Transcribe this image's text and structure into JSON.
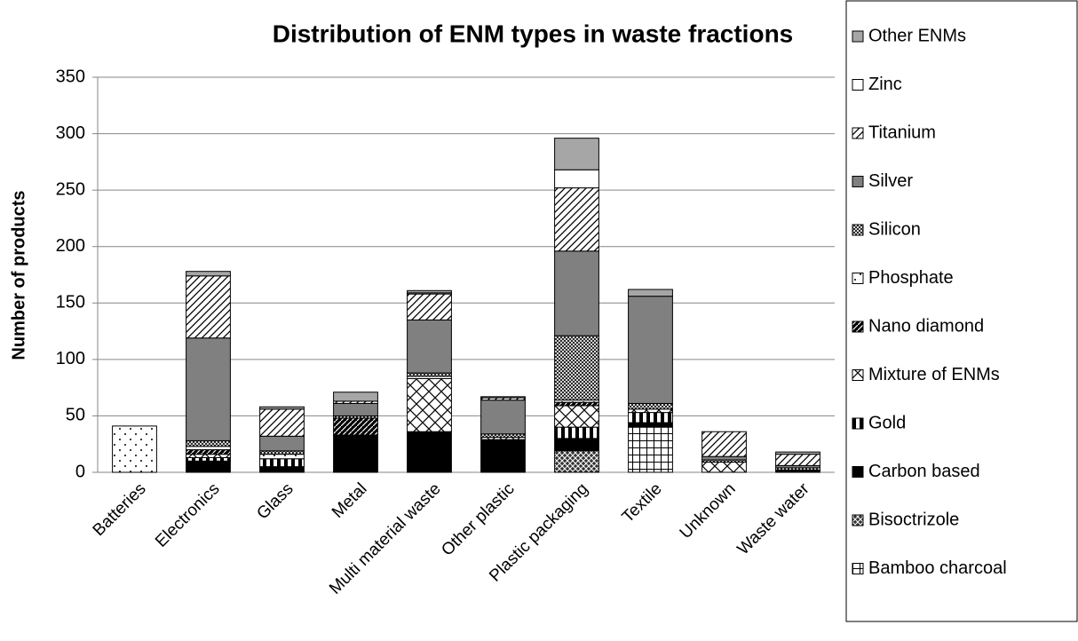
{
  "chart_data": {
    "type": "stacked_bar",
    "title": "Distribution of ENM types in waste fractions",
    "y_label": "Number of products",
    "categories": [
      "Batteries",
      "Electronics",
      "Glass",
      "Metal",
      "Multi material waste",
      "Other plastic",
      "Plastic packaging",
      "Textile",
      "Unknown",
      "Waste water"
    ],
    "ylim": [
      0,
      350
    ],
    "yticks": [
      0,
      50,
      100,
      150,
      200,
      250,
      300,
      350
    ],
    "grid": true,
    "legend": "right",
    "series": [
      {
        "name": "Bamboo charcoal",
        "color": "#000000",
        "pattern": "grid",
        "values": [
          0,
          0,
          0,
          0,
          0,
          0,
          0,
          40,
          0,
          0
        ]
      },
      {
        "name": "Bisoctrizole",
        "color": "#000000",
        "pattern": "crossdiag",
        "values": [
          0,
          0,
          0,
          0,
          0,
          0,
          19,
          0,
          0,
          0
        ]
      },
      {
        "name": "Carbon based",
        "color": "#000000",
        "pattern": "solid",
        "values": [
          0,
          10,
          5,
          33,
          36,
          29,
          11,
          4,
          0,
          2
        ]
      },
      {
        "name": "Gold",
        "color": "#000000",
        "pattern": "vertical",
        "values": [
          0,
          3,
          7,
          0,
          0,
          0,
          10,
          9,
          0,
          0
        ]
      },
      {
        "name": "Mixture of ENMs",
        "color": "#000000",
        "pattern": "diamond",
        "values": [
          0,
          3,
          0,
          0,
          47,
          2,
          19,
          3,
          9,
          0
        ]
      },
      {
        "name": "Nano diamond",
        "color": "#000000",
        "pattern": "darkdiag",
        "values": [
          0,
          4,
          0,
          15,
          0,
          0,
          3,
          0,
          0,
          0
        ]
      },
      {
        "name": "Phosphate",
        "color": "#000000",
        "pattern": "dots",
        "values": [
          41,
          3,
          4,
          0,
          2,
          0,
          2,
          0,
          0,
          0
        ]
      },
      {
        "name": "Silicon",
        "color": "#000000",
        "pattern": "fine",
        "values": [
          0,
          5,
          3,
          2,
          3,
          3,
          57,
          5,
          2,
          2
        ]
      },
      {
        "name": "Silver",
        "color": "#808080",
        "pattern": "solid",
        "values": [
          0,
          91,
          13,
          11,
          47,
          30,
          75,
          95,
          3,
          2
        ]
      },
      {
        "name": "Titanium",
        "color": "#000000",
        "pattern": "widediag",
        "values": [
          0,
          55,
          24,
          2,
          23,
          2,
          56,
          0,
          22,
          10
        ]
      },
      {
        "name": "Zinc",
        "color": "#ffffff",
        "pattern": "solid",
        "values": [
          0,
          0,
          0,
          0,
          1,
          0,
          16,
          0,
          0,
          0
        ]
      },
      {
        "name": "Other ENMs",
        "color": "#a6a6a6",
        "pattern": "solid",
        "values": [
          0,
          4,
          2,
          8,
          2,
          1,
          28,
          6,
          0,
          2
        ]
      }
    ]
  }
}
